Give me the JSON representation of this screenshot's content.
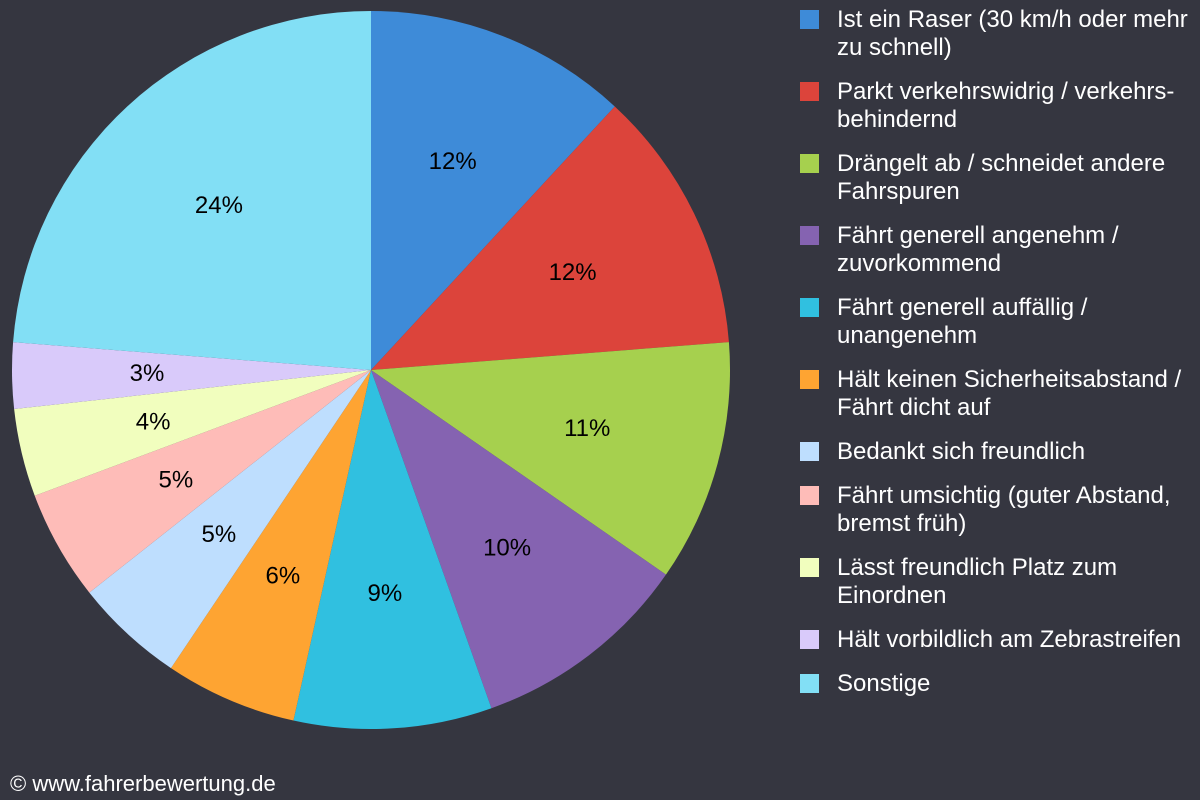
{
  "chart_data": {
    "type": "pie",
    "title": "",
    "slices": [
      {
        "label": "Ist ein Raser (30 km/h oder mehr zu schnell)",
        "value": 12,
        "display": "12%",
        "color": "#3e8bd8"
      },
      {
        "label": "Parkt verkehrswidrig / verkehrs-behindernd",
        "value": 12,
        "display": "12%",
        "color": "#dc443b"
      },
      {
        "label": "Drängelt ab / schneidet andere Fahrspuren",
        "value": 11,
        "display": "11%",
        "color": "#a6d04e"
      },
      {
        "label": "Fährt generell angenehm / zuvorkommend",
        "value": 10,
        "display": "10%",
        "color": "#8563b1"
      },
      {
        "label": "Fährt generell auffällig / unangenehm",
        "value": 9,
        "display": "9%",
        "color": "#30c0e0"
      },
      {
        "label": "Hält keinen Sicherheitsabstand / Fährt dicht auf",
        "value": 6,
        "display": "6%",
        "color": "#fea432"
      },
      {
        "label": "Bedankt sich freundlich",
        "value": 5,
        "display": "5%",
        "color": "#bedefe"
      },
      {
        "label": "Fährt umsichtig (guter Abstand, bremst früh)",
        "value": 5,
        "display": "5%",
        "color": "#febcb8"
      },
      {
        "label": "Lässt freundlich Platz zum Einordnen",
        "value": 4,
        "display": "4%",
        "color": "#f1febe"
      },
      {
        "label": "Hält vorbildlich am Zebrastreifen",
        "value": 3,
        "display": "3%",
        "color": "#d9cafa"
      },
      {
        "label": "Sonstige",
        "value": 24,
        "display": "24%",
        "color": "#82dff5"
      }
    ],
    "legend_position": "right"
  },
  "background_color": "#353640",
  "footer": {
    "copyright": "© www.fahrerbewertung.de"
  }
}
